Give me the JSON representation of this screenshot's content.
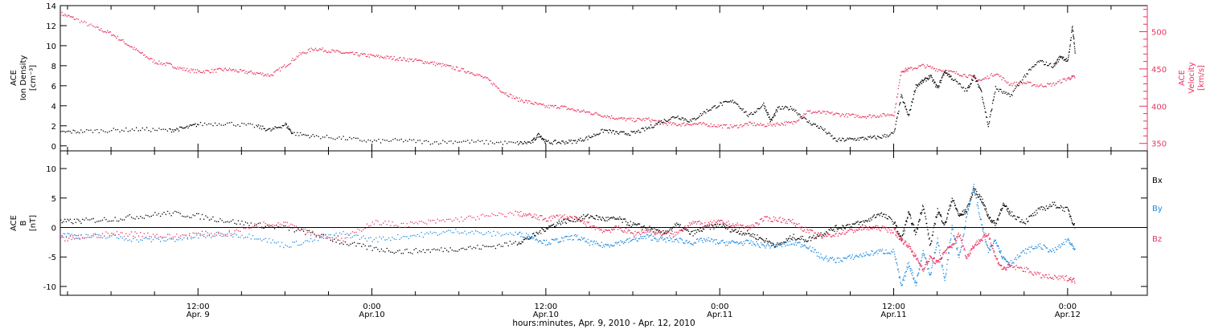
{
  "figure": {
    "xlabel": "hours:minutes, Apr.  9, 2010 - Apr. 12, 2010",
    "x_ticks": [
      {
        "t": 12,
        "top": "12:00",
        "bottom": "Apr. 9"
      },
      {
        "t": 24,
        "top": "0:00",
        "bottom": "Apr.10"
      },
      {
        "t": 36,
        "top": "12:00",
        "bottom": "Apr.10"
      },
      {
        "t": 48,
        "top": "0:00",
        "bottom": "Apr.11"
      },
      {
        "t": 60,
        "top": "12:00",
        "bottom": "Apr.11"
      },
      {
        "t": 72,
        "top": "0:00",
        "bottom": "Apr.12"
      }
    ]
  },
  "colors": {
    "density": "#000000",
    "velocity": "#e8345f",
    "bx": "#000000",
    "by": "#1e8ae0",
    "bz": "#e8345f",
    "axis": "#000000"
  },
  "chart_data": [
    {
      "type": "scatter",
      "panel": "top",
      "ylabel_left": [
        "ACE",
        "Ion Density",
        "[cm⁻³]"
      ],
      "ylabel_right": [
        "ACE",
        "Velocity",
        "[km/s]"
      ],
      "xlim": [
        2.5,
        77.5
      ],
      "ylim_left": [
        -0.5,
        14
      ],
      "ylim_right": [
        340,
        535
      ],
      "y_ticks_left": [
        0,
        2,
        4,
        6,
        8,
        10,
        12,
        14
      ],
      "y_ticks_right": [
        350,
        400,
        450,
        500
      ],
      "series": [
        {
          "axis": "left",
          "color_key": "density",
          "x": [
            2.5,
            4,
            6,
            8,
            10,
            11,
            12,
            14,
            16,
            17,
            18,
            18.5,
            20,
            22,
            24,
            26,
            28,
            30,
            32,
            34,
            35,
            35.5,
            36,
            37,
            38,
            39,
            40,
            41,
            42,
            43,
            44,
            45,
            46,
            47,
            48,
            49,
            50,
            51,
            51.5,
            52,
            53,
            54,
            55,
            56,
            57,
            58,
            59,
            60,
            60.5,
            61,
            61.5,
            62,
            62.5,
            63,
            63.5,
            64,
            65,
            65.5,
            66,
            66.5,
            67,
            68,
            69,
            70,
            71,
            71.5,
            72,
            72.3,
            72.5
          ],
          "y": [
            1.4,
            1.5,
            1.6,
            1.7,
            1.6,
            1.8,
            2.2,
            2.3,
            2.0,
            1.6,
            2.2,
            1.3,
            1.0,
            0.8,
            0.5,
            0.6,
            0.4,
            0.5,
            0.4,
            0.3,
            0.4,
            1.2,
            0.4,
            0.4,
            0.5,
            0.9,
            1.6,
            1.3,
            1.3,
            1.8,
            2.5,
            3.0,
            2.5,
            3.5,
            4.2,
            4.5,
            3.0,
            4.2,
            2.5,
            3.8,
            3.8,
            2.5,
            1.8,
            0.6,
            0.7,
            0.8,
            0.9,
            1.3,
            5.0,
            3.0,
            6.0,
            6.5,
            7.0,
            5.8,
            7.5,
            6.8,
            5.5,
            7.0,
            5.6,
            2.0,
            5.8,
            5.0,
            7.0,
            8.5,
            8.0,
            9.0,
            8.5,
            12.0,
            9.2
          ]
        },
        {
          "axis": "right",
          "color_key": "velocity",
          "x": [
            2.5,
            3.5,
            5,
            6,
            7,
            8,
            9,
            10,
            11,
            12,
            13,
            14,
            15,
            16,
            17,
            18,
            19,
            20,
            21,
            22,
            23,
            24,
            25,
            26,
            27,
            28,
            29,
            30,
            31,
            32,
            33,
            34,
            35,
            36,
            37,
            38,
            39,
            40,
            41,
            42,
            43,
            44,
            45,
            46,
            47,
            48,
            49,
            50,
            51,
            52,
            53,
            54,
            55,
            56,
            57,
            58,
            59,
            60,
            60.5,
            61,
            62,
            63,
            64,
            65,
            66,
            67,
            68,
            69,
            70,
            71,
            72,
            72.5
          ],
          "y": [
            525,
            518,
            505,
            498,
            485,
            472,
            460,
            456,
            450,
            447,
            448,
            450,
            447,
            445,
            442,
            455,
            470,
            478,
            475,
            472,
            470,
            468,
            466,
            464,
            462,
            459,
            455,
            450,
            445,
            436,
            420,
            410,
            405,
            400,
            400,
            395,
            392,
            388,
            384,
            382,
            383,
            378,
            376,
            377,
            376,
            374,
            373,
            377,
            375,
            377,
            378,
            393,
            392,
            390,
            388,
            387,
            388,
            390,
            448,
            450,
            455,
            450,
            446,
            442,
            435,
            445,
            430,
            432,
            428,
            430,
            438,
            440
          ]
        }
      ]
    },
    {
      "type": "scatter",
      "panel": "bottom",
      "ylabel_left": [
        "ACE",
        "B",
        "[nT]"
      ],
      "xlim": [
        2.5,
        77.5
      ],
      "ylim": [
        -11.5,
        13
      ],
      "y_ticks": [
        -10,
        -5,
        0,
        5,
        10
      ],
      "series": [
        {
          "name": "Bx",
          "color_key": "bx",
          "x": [
            2.5,
            4,
            6,
            8,
            10,
            12,
            14,
            16,
            18,
            20,
            22,
            24,
            26,
            28,
            30,
            32,
            34,
            35,
            36,
            37,
            38,
            39,
            40,
            41,
            42,
            43,
            44,
            45,
            46,
            47,
            48,
            49,
            50,
            51,
            52,
            53,
            54,
            55,
            56,
            57,
            58,
            59,
            60,
            60.5,
            61,
            61.5,
            62,
            62.5,
            63,
            63.5,
            64,
            64.5,
            65,
            65.5,
            66,
            66.5,
            67,
            67.5,
            68,
            69,
            70,
            71,
            72,
            72.5
          ],
          "y": [
            1.0,
            1.2,
            1.5,
            2.0,
            2.5,
            2.0,
            1.2,
            0.5,
            0.0,
            -1.0,
            -2.5,
            -3.5,
            -4.0,
            -3.8,
            -3.5,
            -3.2,
            -2.5,
            -1.5,
            0.0,
            1.0,
            1.5,
            2.0,
            1.5,
            1.5,
            0.5,
            0.0,
            -1.0,
            0.5,
            -1.0,
            0.0,
            0.5,
            -0.5,
            -1.0,
            -2.0,
            -3.0,
            -1.5,
            -2.0,
            -1.0,
            0.0,
            0.5,
            1.0,
            2.5,
            1.0,
            -2.0,
            2.5,
            -1.0,
            4.0,
            -3.0,
            3.0,
            0.5,
            5.0,
            2.0,
            3.0,
            6.5,
            5.0,
            2.0,
            0.5,
            4.0,
            2.5,
            1.0,
            3.0,
            4.0,
            3.0,
            0.0
          ]
        },
        {
          "name": "By",
          "color_key": "by",
          "x": [
            2.5,
            4,
            6,
            8,
            10,
            12,
            14,
            16,
            18,
            20,
            22,
            24,
            26,
            28,
            30,
            32,
            34,
            35,
            36,
            37,
            38,
            39,
            40,
            41,
            42,
            43,
            44,
            45,
            46,
            47,
            48,
            49,
            50,
            51,
            52,
            53,
            54,
            55,
            56,
            57,
            58,
            59,
            60,
            60.5,
            61,
            61.5,
            62,
            62.5,
            63,
            63.5,
            64,
            64.5,
            65,
            65.5,
            66,
            66.5,
            67,
            67.5,
            68,
            69,
            70,
            71,
            72,
            72.5
          ],
          "y": [
            -1.0,
            -1.5,
            -1.5,
            -2.0,
            -2.0,
            -1.5,
            -1.0,
            -1.5,
            -3.0,
            -2.0,
            -1.0,
            -2.0,
            -1.5,
            -1.0,
            -0.5,
            -1.0,
            -1.0,
            -1.5,
            -2.5,
            -2.0,
            -1.5,
            -2.5,
            -3.0,
            -2.5,
            -2.0,
            -1.5,
            -2.0,
            -2.0,
            -2.5,
            -2.0,
            -2.5,
            -2.5,
            -2.5,
            -3.0,
            -3.0,
            -2.5,
            -3.0,
            -5.0,
            -5.5,
            -5.0,
            -4.5,
            -4.0,
            -4.0,
            -10.0,
            -6.0,
            -9.5,
            -4.0,
            -8.0,
            -2.0,
            -9.0,
            0.0,
            -5.0,
            2.0,
            7.0,
            1.0,
            -4.0,
            -2.0,
            -5.0,
            -6.0,
            -4.0,
            -3.0,
            -4.0,
            -2.0,
            -4.0
          ]
        },
        {
          "name": "Bz",
          "color_key": "bz",
          "x": [
            2.5,
            4,
            6,
            8,
            10,
            12,
            14,
            16,
            18,
            20,
            22,
            24,
            26,
            28,
            30,
            32,
            34,
            35,
            36,
            37,
            38,
            39,
            40,
            41,
            42,
            43,
            44,
            45,
            46,
            47,
            48,
            49,
            50,
            51,
            52,
            53,
            54,
            55,
            56,
            57,
            58,
            59,
            60,
            60.5,
            61,
            61.5,
            62,
            62.5,
            63,
            63.5,
            64,
            64.5,
            65,
            65.5,
            66,
            66.5,
            67,
            67.5,
            68,
            69,
            70,
            71,
            72,
            72.5
          ],
          "y": [
            -2.0,
            -1.5,
            -1.0,
            -1.0,
            -1.5,
            -1.0,
            -1.0,
            0.5,
            1.0,
            -1.0,
            -2.0,
            1.0,
            0.5,
            1.0,
            1.5,
            2.0,
            2.5,
            2.0,
            1.5,
            2.0,
            1.5,
            0.5,
            -0.5,
            0.0,
            -1.0,
            -0.5,
            -1.0,
            -1.0,
            1.0,
            0.5,
            1.0,
            0.5,
            0.0,
            1.5,
            1.5,
            1.0,
            -0.5,
            -1.5,
            -1.0,
            -0.5,
            0.0,
            0.0,
            -0.5,
            -2.0,
            -3.0,
            -5.0,
            -7.0,
            -5.0,
            -6.0,
            -4.0,
            -3.0,
            -1.0,
            -5.0,
            -3.0,
            -2.0,
            -1.0,
            -5.0,
            -7.0,
            -6.5,
            -7.0,
            -8.0,
            -8.5,
            -8.5,
            -9.0
          ]
        }
      ]
    }
  ]
}
